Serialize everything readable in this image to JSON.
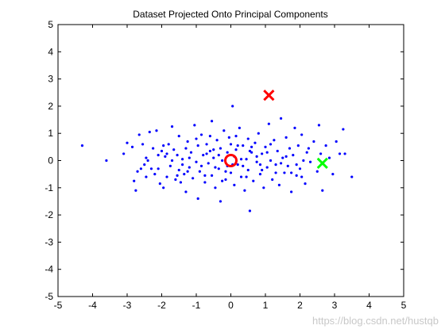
{
  "chart_data": {
    "type": "scatter",
    "title": "Dataset Projected Onto Principal Components",
    "xlabel": "",
    "ylabel": "",
    "xlim": [
      -5,
      5
    ],
    "ylim": [
      -5,
      5
    ],
    "xticks": [
      -5,
      -4,
      -3,
      -2,
      -1,
      0,
      1,
      2,
      3,
      4,
      5
    ],
    "yticks": [
      -5,
      -4,
      -3,
      -2,
      -1,
      0,
      1,
      2,
      3,
      4,
      5
    ],
    "grid": false,
    "series": [
      {
        "marker": "dot",
        "color": "#0000ff",
        "points": [
          [
            -4.3,
            0.55
          ],
          [
            -3.6,
            0.0
          ],
          [
            -3.1,
            0.25
          ],
          [
            -3.0,
            0.65
          ],
          [
            -2.85,
            0.5
          ],
          [
            -2.8,
            -0.75
          ],
          [
            -2.75,
            -1.1
          ],
          [
            -2.7,
            -0.4
          ],
          [
            -2.65,
            0.95
          ],
          [
            -2.55,
            0.6
          ],
          [
            -2.5,
            -0.15
          ],
          [
            -2.45,
            0.1
          ],
          [
            -2.4,
            0.0
          ],
          [
            -2.35,
            1.05
          ],
          [
            -2.3,
            -0.3
          ],
          [
            -2.25,
            0.45
          ],
          [
            -2.2,
            -0.5
          ],
          [
            -2.15,
            1.1
          ],
          [
            -2.1,
            0.2
          ],
          [
            -2.05,
            -0.85
          ],
          [
            -2.0,
            0.35
          ],
          [
            -1.95,
            -1.0
          ],
          [
            -1.9,
            0.15
          ],
          [
            -1.85,
            -0.6
          ],
          [
            -1.8,
            0.6
          ],
          [
            -1.75,
            -0.2
          ],
          [
            -1.7,
            1.25
          ],
          [
            -1.65,
            0.4
          ],
          [
            -1.6,
            -0.7
          ],
          [
            -1.55,
            0.2
          ],
          [
            -1.5,
            -0.35
          ],
          [
            -1.5,
            0.9
          ],
          [
            -1.45,
            -0.8
          ],
          [
            -1.4,
            0.05
          ],
          [
            -1.35,
            -0.5
          ],
          [
            -1.3,
            0.45
          ],
          [
            -1.3,
            -1.15
          ],
          [
            -1.25,
            0.7
          ],
          [
            -1.2,
            -0.25
          ],
          [
            -1.15,
            0.3
          ],
          [
            -1.1,
            -0.65
          ],
          [
            -1.05,
            1.3
          ],
          [
            -1.0,
            -0.05
          ],
          [
            -0.95,
            0.55
          ],
          [
            -0.95,
            -1.4
          ],
          [
            -0.9,
            -0.4
          ],
          [
            -0.85,
            0.95
          ],
          [
            -0.8,
            0.2
          ],
          [
            -0.75,
            -0.8
          ],
          [
            -0.7,
            0.6
          ],
          [
            -0.65,
            -0.1
          ],
          [
            -0.6,
            0.35
          ],
          [
            -0.55,
            -0.55
          ],
          [
            -0.55,
            1.45
          ],
          [
            -0.5,
            0.1
          ],
          [
            -0.45,
            -1.0
          ],
          [
            -0.4,
            0.75
          ],
          [
            -0.35,
            -0.3
          ],
          [
            -0.3,
            0.45
          ],
          [
            -0.3,
            -1.5
          ],
          [
            -0.25,
            0.0
          ],
          [
            -0.2,
            1.1
          ],
          [
            -0.15,
            -0.7
          ],
          [
            -0.1,
            0.3
          ],
          [
            -0.1,
            -0.2
          ],
          [
            -0.05,
            0.85
          ],
          [
            0.0,
            -0.45
          ],
          [
            0.0,
            0.6
          ],
          [
            0.05,
            2.0
          ],
          [
            0.1,
            0.15
          ],
          [
            0.1,
            -0.9
          ],
          [
            0.15,
            0.4
          ],
          [
            0.2,
            -0.15
          ],
          [
            0.25,
            1.2
          ],
          [
            0.3,
            -0.6
          ],
          [
            0.35,
            0.55
          ],
          [
            0.4,
            -1.1
          ],
          [
            0.45,
            0.05
          ],
          [
            0.5,
            0.8
          ],
          [
            0.5,
            -0.35
          ],
          [
            0.55,
            -1.85
          ],
          [
            0.6,
            0.3
          ],
          [
            0.65,
            -0.75
          ],
          [
            0.7,
            0.65
          ],
          [
            0.75,
            -0.05
          ],
          [
            0.8,
            1.0
          ],
          [
            0.85,
            -0.5
          ],
          [
            0.9,
            0.25
          ],
          [
            0.95,
            -1.0
          ],
          [
            1.0,
            0.5
          ],
          [
            1.05,
            -0.25
          ],
          [
            1.1,
            1.35
          ],
          [
            1.15,
            0.0
          ],
          [
            1.2,
            -0.7
          ],
          [
            1.25,
            0.75
          ],
          [
            1.3,
            -0.15
          ],
          [
            1.35,
            0.35
          ],
          [
            1.4,
            -0.9
          ],
          [
            1.45,
            1.55
          ],
          [
            1.5,
            0.1
          ],
          [
            1.55,
            -0.45
          ],
          [
            1.6,
            0.85
          ],
          [
            1.65,
            -0.2
          ],
          [
            1.7,
            0.45
          ],
          [
            1.75,
            -1.15
          ],
          [
            1.8,
            0.2
          ],
          [
            1.85,
            1.2
          ],
          [
            1.9,
            -0.55
          ],
          [
            1.95,
            0.55
          ],
          [
            2.0,
            -0.3
          ],
          [
            2.05,
            0.95
          ],
          [
            2.1,
            0.0
          ],
          [
            2.15,
            -0.85
          ],
          [
            2.2,
            0.3
          ],
          [
            2.3,
            -0.05
          ],
          [
            2.4,
            0.7
          ],
          [
            2.5,
            -0.4
          ],
          [
            2.55,
            1.3
          ],
          [
            2.6,
            0.25
          ],
          [
            2.65,
            -1.1
          ],
          [
            2.75,
            0.55
          ],
          [
            2.85,
            0.1
          ],
          [
            2.95,
            -0.5
          ],
          [
            3.05,
            0.7
          ],
          [
            3.15,
            0.25
          ],
          [
            3.25,
            1.15
          ],
          [
            3.3,
            0.25
          ],
          [
            3.5,
            -0.6
          ],
          [
            -2.6,
            -0.3
          ],
          [
            -1.95,
            0.55
          ],
          [
            -1.55,
            -0.55
          ],
          [
            -1.2,
            0.1
          ],
          [
            -0.85,
            -0.2
          ],
          [
            -0.6,
            0.9
          ],
          [
            -0.35,
            0.2
          ],
          [
            -0.15,
            -0.4
          ],
          [
            0.15,
            0.9
          ],
          [
            0.35,
            -0.2
          ],
          [
            0.6,
            0.5
          ],
          [
            0.85,
            -0.15
          ],
          [
            1.05,
            0.3
          ],
          [
            1.3,
            -0.45
          ],
          [
            1.6,
            0.15
          ],
          [
            1.9,
            -0.15
          ],
          [
            2.25,
            0.45
          ],
          [
            2.05,
            -0.6
          ],
          [
            -0.75,
            -0.55
          ],
          [
            -0.5,
            0.4
          ],
          [
            -1.0,
            0.8
          ],
          [
            -1.4,
            -0.15
          ],
          [
            0.2,
            0.55
          ],
          [
            0.45,
            -0.6
          ],
          [
            0.75,
            0.15
          ],
          [
            1.15,
            0.6
          ],
          [
            1.45,
            -0.1
          ],
          [
            1.75,
            -0.45
          ],
          [
            -2.1,
            -0.3
          ],
          [
            -1.7,
            0.0
          ],
          [
            -0.25,
            -0.75
          ],
          [
            0.05,
            -0.15
          ],
          [
            0.3,
            0.05
          ],
          [
            0.55,
            0.35
          ],
          [
            0.9,
            -0.35
          ],
          [
            -2.45,
            -0.6
          ],
          [
            -1.85,
            0.25
          ],
          [
            -1.25,
            -0.4
          ],
          [
            -0.7,
            0.25
          ],
          [
            -0.45,
            -0.25
          ]
        ]
      },
      {
        "marker": "circle",
        "color": "#ff0000",
        "points": [
          [
            0.0,
            0.0
          ]
        ]
      },
      {
        "marker": "x",
        "color": "#ff0000",
        "points": [
          [
            1.1,
            2.4
          ]
        ]
      },
      {
        "marker": "x",
        "color": "#00ff00",
        "points": [
          [
            2.65,
            -0.1
          ]
        ]
      }
    ]
  },
  "watermark": "https://blog.csdn.net/hustqb"
}
